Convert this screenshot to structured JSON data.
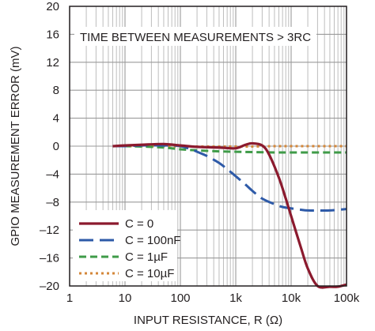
{
  "chart_data": {
    "type": "line",
    "title": "",
    "xlabel": "INPUT RESISTANCE, R (Ω)",
    "ylabel": "GPIO MEASUREMENT ERROR (mV)",
    "annotation": "TIME BETWEEN MEASUREMENTS > 3RC",
    "xscale": "log",
    "xlim": [
      1,
      100000
    ],
    "ylim": [
      -20,
      20
    ],
    "x_ticks": [
      1,
      10,
      100,
      1000,
      10000,
      100000
    ],
    "x_tick_labels": [
      "1",
      "10",
      "100",
      "1k",
      "10k",
      "100k"
    ],
    "y_ticks": [
      -20,
      -16,
      -12,
      -8,
      -4,
      0,
      4,
      8,
      12,
      16,
      20
    ],
    "y_tick_labels": [
      "–20",
      "–16",
      "–12",
      "–8",
      "–4",
      "0",
      "4",
      "8",
      "12",
      "16",
      "20"
    ],
    "grid": true,
    "legend_position": "bottom-left",
    "series": [
      {
        "name": "C = 0",
        "color": "#8b1a2e",
        "dash": "solid",
        "x": [
          6,
          10,
          20,
          50,
          100,
          200,
          500,
          1000,
          1500,
          2000,
          3000,
          4000,
          6000,
          8000,
          10000,
          15000,
          20000,
          30000,
          50000,
          70000,
          100000
        ],
        "y": [
          0,
          0.1,
          0.2,
          0.3,
          0.1,
          -0.1,
          -0.2,
          -0.3,
          0.2,
          0.4,
          0.1,
          -1.2,
          -4.5,
          -7.5,
          -10,
          -14.5,
          -17.5,
          -20,
          -20.4,
          -20.1,
          -19.8
        ]
      },
      {
        "name": "C = 100nF",
        "color": "#2e5aa8",
        "dash": "long-dash",
        "x": [
          6,
          10,
          20,
          50,
          70,
          100,
          150,
          200,
          300,
          500,
          700,
          1000,
          1500,
          2000,
          3000,
          5000,
          7000,
          10000,
          15000,
          20000,
          30000,
          50000,
          100000
        ],
        "y": [
          0,
          0,
          0.1,
          0.1,
          0.1,
          0,
          -0.4,
          -0.8,
          -1.4,
          -2.4,
          -3.3,
          -4.3,
          -5.5,
          -6.4,
          -7.5,
          -8.3,
          -8.7,
          -8.9,
          -9.1,
          -9.2,
          -9.2,
          -9.2,
          -9.0
        ]
      },
      {
        "name": "C = 1µF",
        "color": "#3f9b48",
        "dash": "dash",
        "x": [
          6,
          10,
          20,
          50,
          100,
          200,
          500,
          1000,
          2000,
          5000,
          10000,
          20000,
          50000,
          100000
        ],
        "y": [
          0,
          0,
          -0.05,
          -0.2,
          -0.45,
          -0.6,
          -0.75,
          -0.8,
          -0.85,
          -0.9,
          -0.9,
          -0.9,
          -0.9,
          -0.9
        ]
      },
      {
        "name": "C = 10µF",
        "color": "#d4873a",
        "dash": "dot",
        "x": [
          6,
          10,
          20,
          50,
          100,
          200,
          500,
          1000,
          2000,
          5000,
          10000,
          20000,
          50000,
          100000
        ],
        "y": [
          0,
          0,
          0,
          0,
          -0.05,
          -0.05,
          -0.05,
          -0.05,
          -0.05,
          0,
          0,
          0,
          0,
          0
        ]
      }
    ]
  }
}
